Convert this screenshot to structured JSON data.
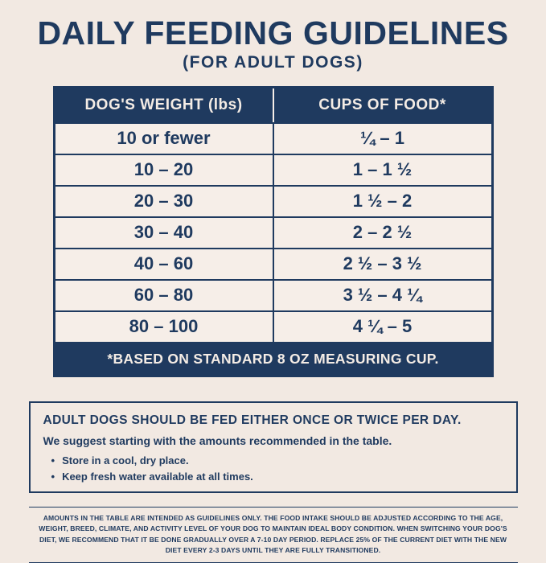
{
  "colors": {
    "navy": "#1f3a5f",
    "paper": "#f2e9e2",
    "paper_light": "#f6eee8",
    "header_text": "#f4ece5"
  },
  "page": {
    "title": "DAILY FEEDING GUIDELINES",
    "subtitle": "(FOR ADULT DOGS)"
  },
  "chart_data": {
    "type": "table",
    "title": "Daily Feeding Guidelines (For Adult Dogs)",
    "columns": [
      "DOG'S WEIGHT (lbs)",
      "CUPS OF FOOD*"
    ],
    "rows": [
      [
        "10 or fewer",
        "1/4 – 1"
      ],
      [
        "10 – 20",
        "1 – 1 1/2"
      ],
      [
        "20 – 30",
        "1 1/2 – 2"
      ],
      [
        "30 – 40",
        "2 – 2 1/2"
      ],
      [
        "40 – 60",
        "2 1/2 – 3 1/2"
      ],
      [
        "60 – 80",
        "3 1/2 – 4 1/4"
      ],
      [
        "80 – 100",
        "4 1/4 – 5"
      ]
    ]
  },
  "table": {
    "headers": [
      "DOG'S WEIGHT (lbs)",
      "CUPS OF FOOD*"
    ],
    "rows": [
      {
        "weight": "10 or fewer",
        "cups": "¼ – 1"
      },
      {
        "weight": "10 – 20",
        "cups": "1 – 1 ½"
      },
      {
        "weight": "20 – 30",
        "cups": "1 ½ – 2"
      },
      {
        "weight": "30 – 40",
        "cups": "2 – 2 ½"
      },
      {
        "weight": "40 – 60",
        "cups": "2 ½ – 3 ½"
      },
      {
        "weight": "60 – 80",
        "cups": "3 ½ – 4 ¼"
      },
      {
        "weight": "80 – 100",
        "cups": "4 ¼ – 5"
      }
    ],
    "footnote": "*BASED ON STANDARD 8 OZ MEASURING CUP."
  },
  "info_box": {
    "heading": "ADULT DOGS SHOULD BE FED EITHER ONCE OR TWICE PER DAY.",
    "subheading": "We suggest starting with the amounts recommended in the table.",
    "bullets": [
      "Store in a cool, dry place.",
      "Keep fresh water available at all times."
    ]
  },
  "fine_print": "AMOUNTS IN THE TABLE ARE INTENDED AS GUIDELINES ONLY. THE FOOD INTAKE SHOULD BE ADJUSTED ACCORDING TO THE AGE, WEIGHT, BREED, CLIMATE, AND ACTIVITY LEVEL OF YOUR DOG TO MAINTAIN IDEAL BODY CONDITION. WHEN SWITCHING YOUR DOG'S DIET, WE RECOMMEND THAT IT BE DONE GRADUALLY OVER A 7-10 DAY PERIOD. REPLACE 25% OF THE CURRENT DIET WITH THE NEW DIET EVERY 2-3 DAYS UNTIL THEY ARE FULLY TRANSITIONED."
}
